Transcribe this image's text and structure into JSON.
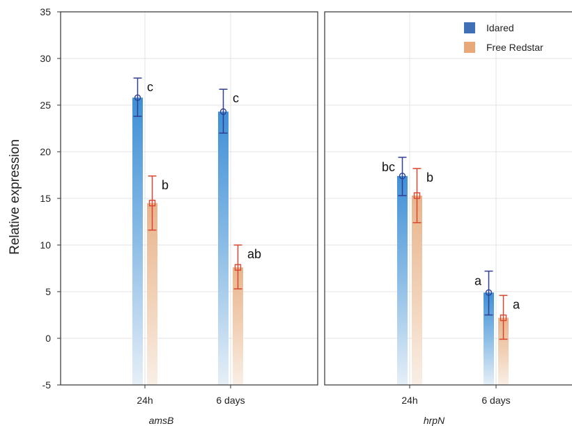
{
  "chart_data": {
    "type": "bar",
    "ylabel": "Relative expression",
    "ylim": [
      -5,
      35
    ],
    "yticks": [
      35,
      30,
      25,
      20,
      15,
      10,
      5,
      0,
      -5
    ],
    "grid": true,
    "legend": {
      "position": "top-right",
      "entries": [
        {
          "name": "Idared",
          "color": "#3f6fb5"
        },
        {
          "name": "Free Redstar",
          "color": "#e8a97a"
        }
      ]
    },
    "panels": [
      {
        "title": "amsB",
        "categories": [
          "24h",
          "6 days"
        ],
        "series": [
          {
            "name": "Idared",
            "values": [
              25.8,
              24.3
            ],
            "err_low": [
              23.8,
              22.0
            ],
            "err_high": [
              27.9,
              26.7
            ],
            "labels": [
              "c",
              "c"
            ]
          },
          {
            "name": "Free Redstar",
            "values": [
              14.5,
              7.6
            ],
            "err_low": [
              11.6,
              5.3
            ],
            "err_high": [
              17.4,
              10.0
            ],
            "labels": [
              "b",
              "ab"
            ]
          }
        ]
      },
      {
        "title": "hrpN",
        "categories": [
          "24h",
          "6 days"
        ],
        "series": [
          {
            "name": "Idared",
            "values": [
              17.4,
              4.9
            ],
            "err_low": [
              15.3,
              2.5
            ],
            "err_high": [
              19.4,
              7.2
            ],
            "labels": [
              "bc",
              "a"
            ]
          },
          {
            "name": "Free Redstar",
            "values": [
              15.3,
              2.2
            ],
            "err_low": [
              12.4,
              -0.1
            ],
            "err_high": [
              18.2,
              4.6
            ],
            "labels": [
              "b",
              "a"
            ]
          }
        ]
      }
    ]
  }
}
